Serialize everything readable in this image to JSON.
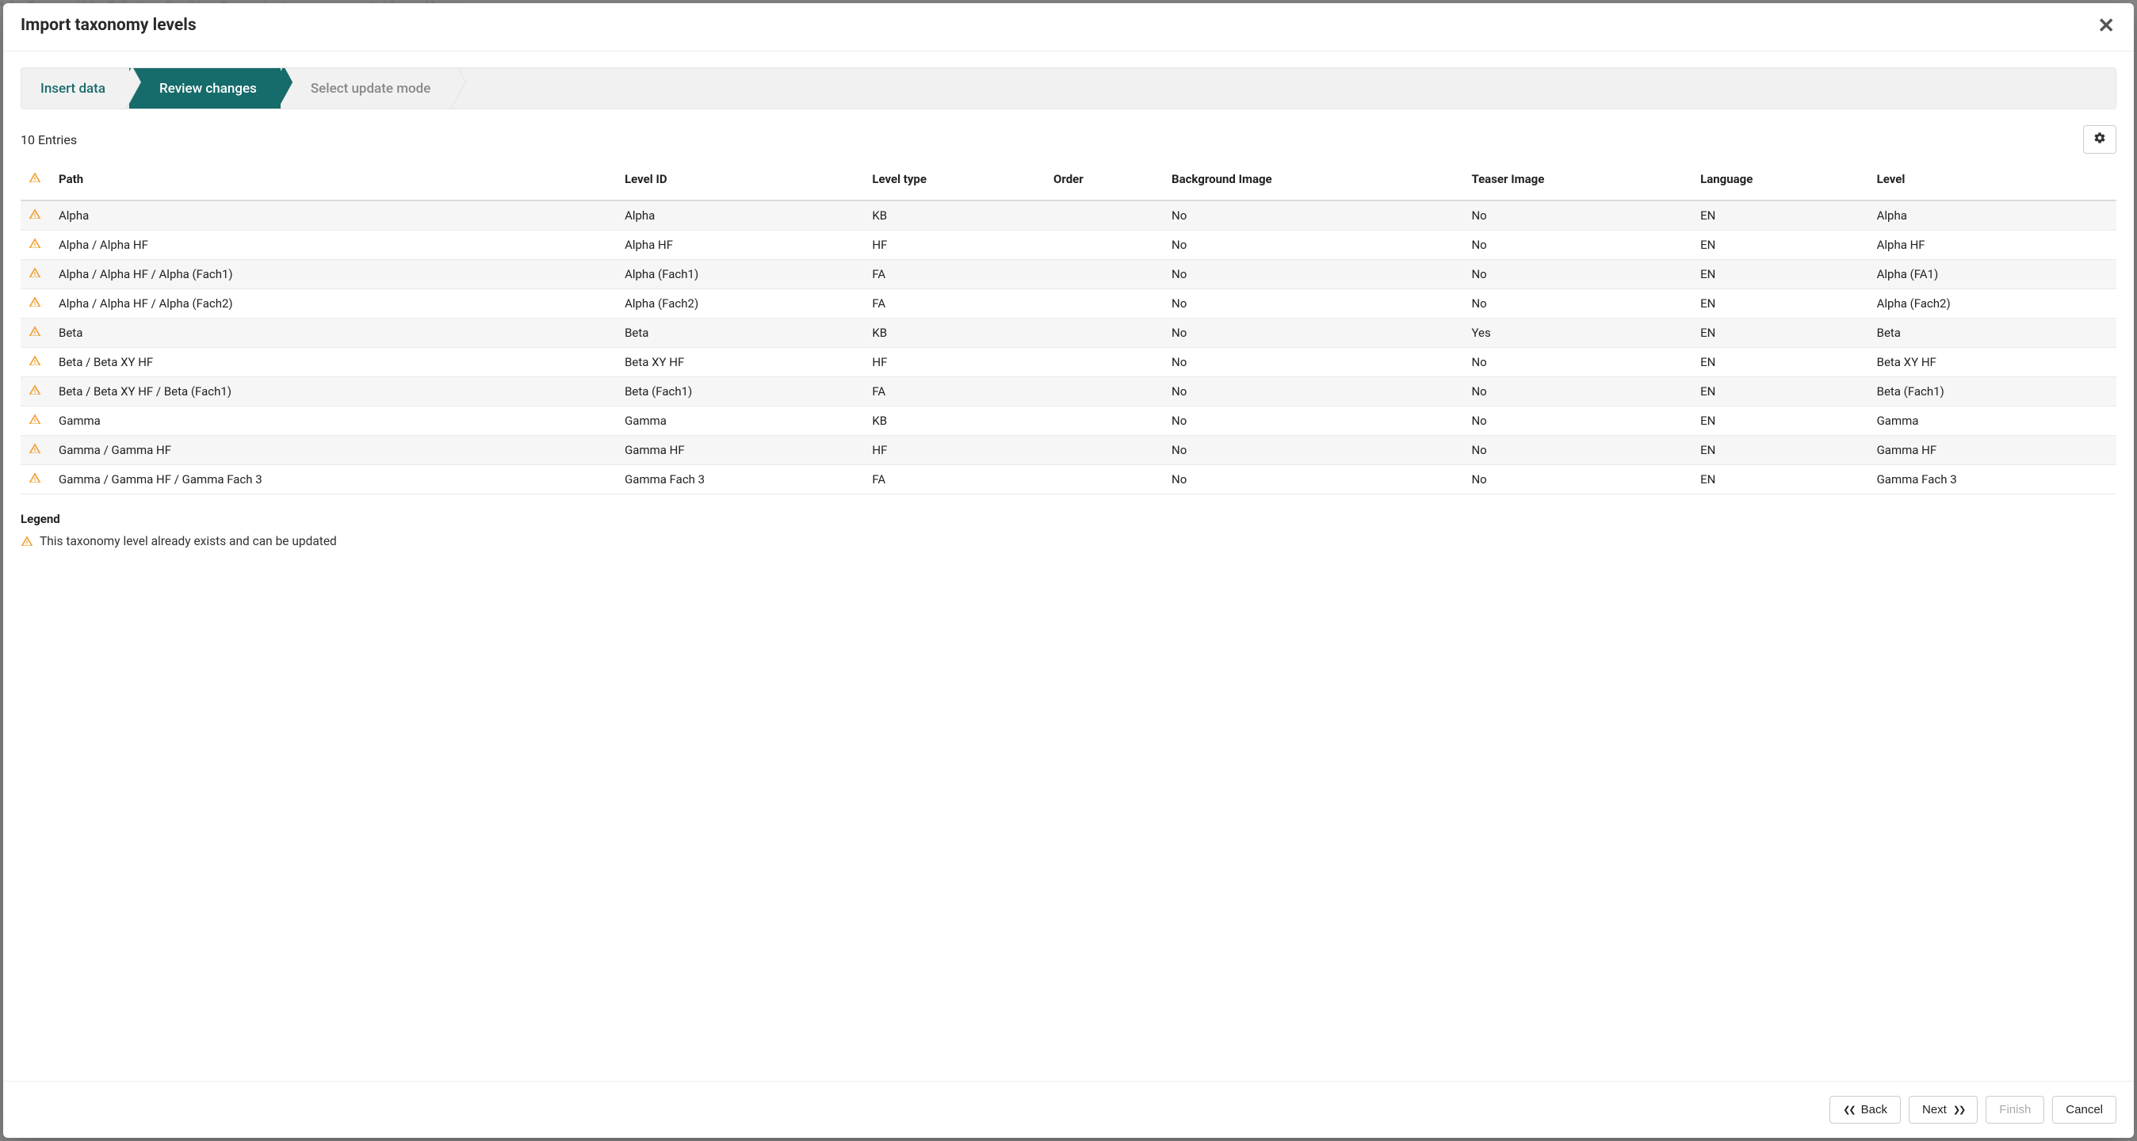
{
  "modal": {
    "title": "Import taxonomy levels",
    "close_label": "Close"
  },
  "wizard": {
    "steps": [
      {
        "label": "Insert data",
        "state": "done"
      },
      {
        "label": "Review changes",
        "state": "active"
      },
      {
        "label": "Select update mode",
        "state": "upcoming"
      }
    ]
  },
  "entries": {
    "count_text": "10 Entries"
  },
  "table": {
    "columns": [
      "",
      "Path",
      "Level ID",
      "Level type",
      "Order",
      "Background Image",
      "Teaser Image",
      "Language",
      "Level"
    ],
    "rows": [
      {
        "warn": true,
        "path": "Alpha",
        "level_id": "Alpha",
        "level_type": "KB",
        "order": "",
        "bg": "No",
        "teaser": "No",
        "lang": "EN",
        "level": "Alpha"
      },
      {
        "warn": true,
        "path": "Alpha / Alpha HF",
        "level_id": "Alpha HF",
        "level_type": "HF",
        "order": "",
        "bg": "No",
        "teaser": "No",
        "lang": "EN",
        "level": "Alpha HF"
      },
      {
        "warn": true,
        "path": "Alpha / Alpha HF / Alpha (Fach1)",
        "level_id": "Alpha (Fach1)",
        "level_type": "FA",
        "order": "",
        "bg": "No",
        "teaser": "No",
        "lang": "EN",
        "level": "Alpha (FA1)"
      },
      {
        "warn": true,
        "path": "Alpha / Alpha HF / Alpha (Fach2)",
        "level_id": "Alpha (Fach2)",
        "level_type": "FA",
        "order": "",
        "bg": "No",
        "teaser": "No",
        "lang": "EN",
        "level": "Alpha (Fach2)"
      },
      {
        "warn": true,
        "path": "Beta",
        "level_id": "Beta",
        "level_type": "KB",
        "order": "",
        "bg": "No",
        "teaser": "Yes",
        "lang": "EN",
        "level": "Beta"
      },
      {
        "warn": true,
        "path": "Beta / Beta XY HF",
        "level_id": "Beta XY HF",
        "level_type": "HF",
        "order": "",
        "bg": "No",
        "teaser": "No",
        "lang": "EN",
        "level": "Beta XY HF"
      },
      {
        "warn": true,
        "path": "Beta / Beta XY HF / Beta (Fach1)",
        "level_id": "Beta (Fach1)",
        "level_type": "FA",
        "order": "",
        "bg": "No",
        "teaser": "No",
        "lang": "EN",
        "level": "Beta (Fach1)"
      },
      {
        "warn": true,
        "path": "Gamma",
        "level_id": "Gamma",
        "level_type": "KB",
        "order": "",
        "bg": "No",
        "teaser": "No",
        "lang": "EN",
        "level": "Gamma"
      },
      {
        "warn": true,
        "path": "Gamma / Gamma HF",
        "level_id": "Gamma HF",
        "level_type": "HF",
        "order": "",
        "bg": "No",
        "teaser": "No",
        "lang": "EN",
        "level": "Gamma HF"
      },
      {
        "warn": true,
        "path": "Gamma / Gamma HF / Gamma Fach 3",
        "level_id": "Gamma Fach 3",
        "level_type": "FA",
        "order": "",
        "bg": "No",
        "teaser": "No",
        "lang": "EN",
        "level": "Gamma Fach 3"
      }
    ]
  },
  "legend": {
    "title": "Legend",
    "items": [
      {
        "icon": "warning",
        "text": "This taxonomy level already exists and can be updated"
      }
    ]
  },
  "footer": {
    "back": "Back",
    "next": "Next",
    "finish": "Finish",
    "cancel": "Cancel"
  },
  "colors": {
    "accent_teal": "#166b6b",
    "warning": "#f0a034",
    "row_stripe": "#f6f6f6",
    "border": "#e5e5e5"
  }
}
